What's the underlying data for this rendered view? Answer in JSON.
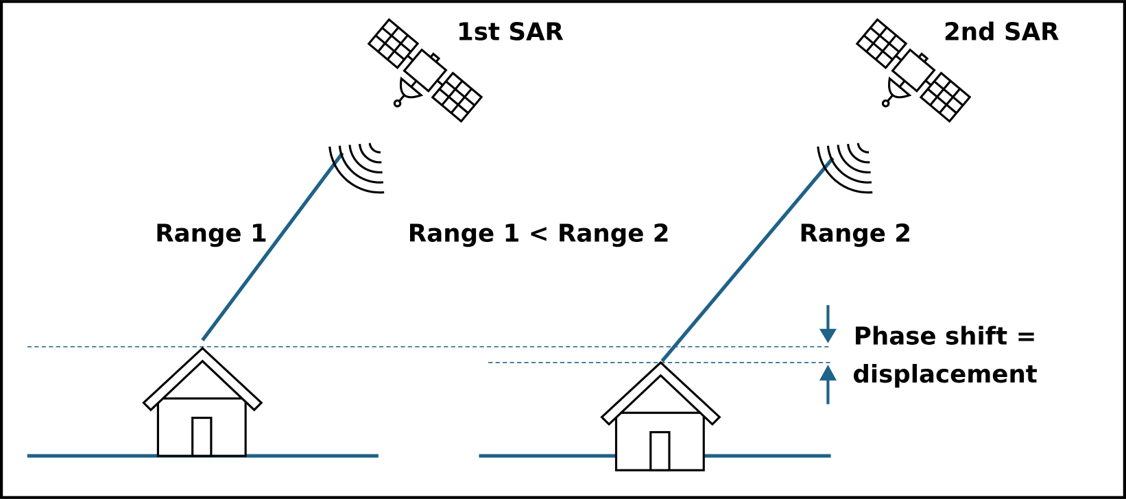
{
  "satellites": [
    {
      "label": "1st SAR"
    },
    {
      "label": "2nd SAR"
    }
  ],
  "ranges": [
    {
      "label": "Range 1"
    },
    {
      "label": "Range 1 < Range 2"
    },
    {
      "label": "Range 2"
    }
  ],
  "phase_shift": {
    "line1": "Phase shift =",
    "line2": "displacement"
  }
}
